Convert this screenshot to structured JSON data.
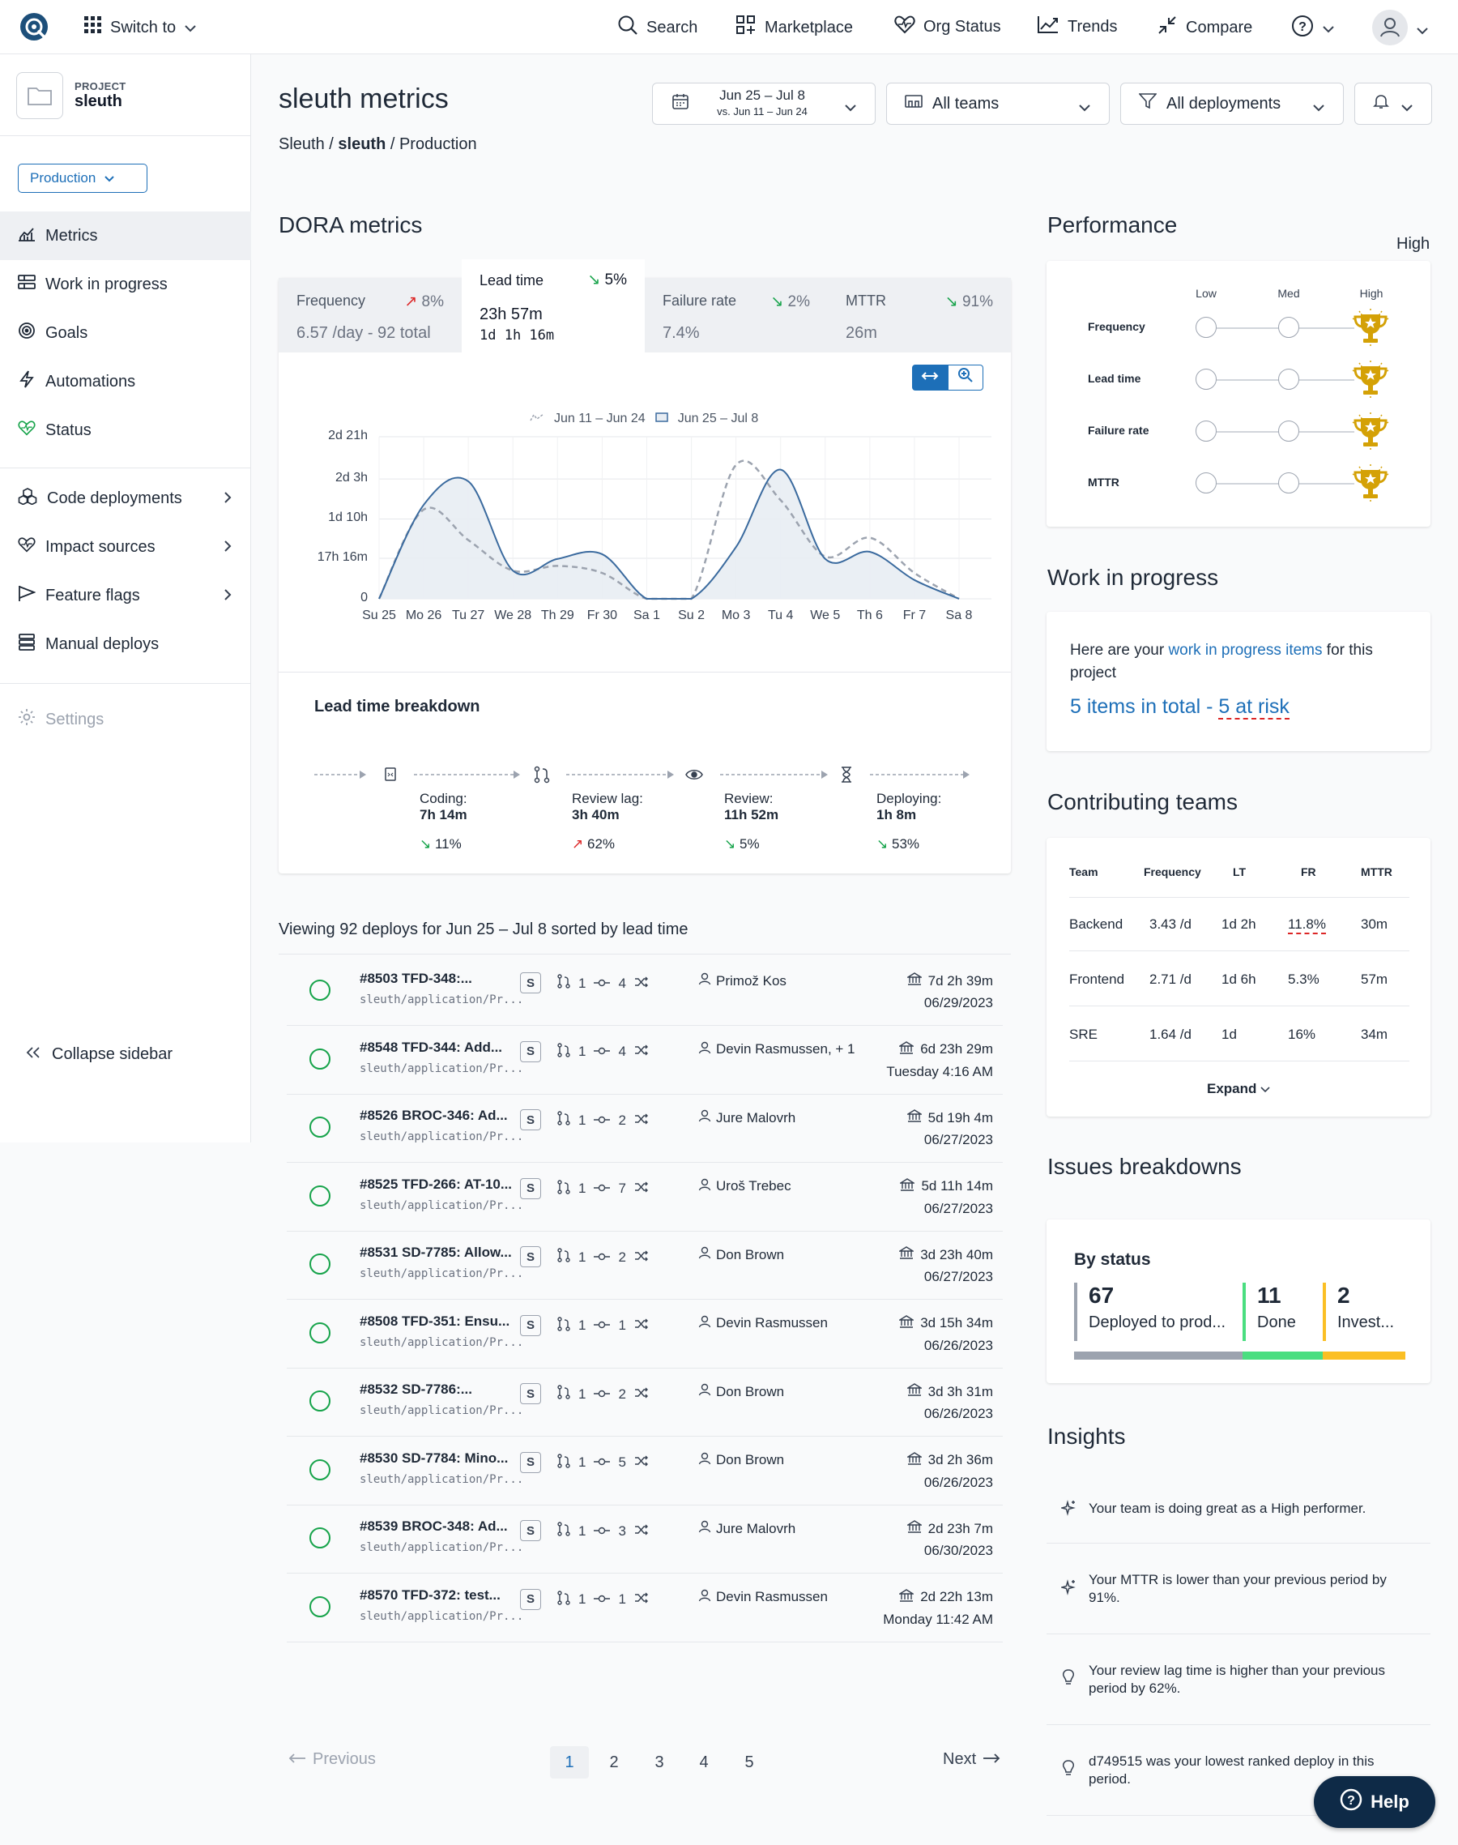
{
  "topbar": {
    "switch_label": "Switch to",
    "nav": [
      {
        "label": "Search",
        "icon": "search-icon"
      },
      {
        "label": "Marketplace",
        "icon": "grid-plus-icon"
      },
      {
        "label": "Org Status",
        "icon": "heart-pulse-icon"
      },
      {
        "label": "Trends",
        "icon": "trend-icon"
      },
      {
        "label": "Compare",
        "icon": "compare-icon"
      }
    ]
  },
  "sidebar": {
    "project_label": "PROJECT",
    "project_name": "sleuth",
    "environment": "Production",
    "items": [
      {
        "label": "Metrics",
        "icon": "chart-icon",
        "active": true
      },
      {
        "label": "Work in progress",
        "icon": "list-icon"
      },
      {
        "label": "Goals",
        "icon": "target-icon"
      },
      {
        "label": "Automations",
        "icon": "bolt-icon"
      },
      {
        "label": "Status",
        "icon": "heart-pulse-icon"
      },
      {
        "label": "Code deployments",
        "icon": "cubes-icon"
      },
      {
        "label": "Impact sources",
        "icon": "heart-pulse-icon"
      },
      {
        "label": "Feature flags",
        "icon": "flag-icon"
      },
      {
        "label": "Manual deploys",
        "icon": "stack-icon"
      },
      {
        "label": "Settings",
        "icon": "gear-icon"
      }
    ],
    "collapse_label": "Collapse sidebar"
  },
  "header": {
    "title": "sleuth metrics",
    "breadcrumb": [
      "Sleuth",
      "sleuth",
      "Production"
    ],
    "date_range": "Jun 25 – Jul 8",
    "date_compare": "vs. Jun 11 – Jun 24",
    "teams": "All teams",
    "deployments": "All deployments"
  },
  "dora": {
    "heading": "DORA metrics",
    "tabs": [
      {
        "label": "Frequency",
        "pct": "8%",
        "dir": "up",
        "value": "6.57 /day - 92 total"
      },
      {
        "label": "Lead time",
        "pct": "5%",
        "dir": "down",
        "value": "23h 57m",
        "sub": "1d 1h 16m"
      },
      {
        "label": "Failure rate",
        "pct": "2%",
        "dir": "down",
        "value": "7.4%"
      },
      {
        "label": "MTTR",
        "pct": "91%",
        "dir": "down",
        "value": "26m"
      }
    ],
    "breakdown_title": "Lead time breakdown",
    "stages": [
      {
        "label": "Coding:",
        "value": "7h 14m",
        "pct": "11%",
        "dir": "down"
      },
      {
        "label": "Review lag:",
        "value": "3h 40m",
        "pct": "62%",
        "dir": "up"
      },
      {
        "label": "Review:",
        "value": "11h 52m",
        "pct": "5%",
        "dir": "down"
      },
      {
        "label": "Deploying:",
        "value": "1h 8m",
        "pct": "53%",
        "dir": "down"
      }
    ]
  },
  "chart_data": {
    "type": "area",
    "title": "",
    "legend": [
      "Jun 11 – Jun 24",
      "Jun 25 – Jul 8"
    ],
    "categories": [
      "Su 25",
      "Mo 26",
      "Tu 27",
      "We 28",
      "Th 29",
      "Fr 30",
      "Sa 1",
      "Su 2",
      "Mo 3",
      "Tu 4",
      "We 5",
      "Th 6",
      "Fr 7",
      "Sa 8"
    ],
    "y_ticks": [
      "0",
      "17h 16m",
      "1d 10h",
      "2d 3h",
      "2d 21h"
    ],
    "ylim_hours": [
      0,
      69
    ],
    "series": [
      {
        "name": "Jun 25 – Jul 8",
        "style": "solid",
        "values_hours": [
          0,
          40,
          50,
          12,
          17,
          19,
          0,
          0,
          22,
          55,
          17,
          20,
          8,
          0
        ]
      },
      {
        "name": "Jun 11 – Jun 24",
        "style": "dashed",
        "values_hours": [
          0,
          38,
          25,
          12,
          14,
          11,
          0,
          0,
          57,
          42,
          18,
          26,
          11,
          0
        ]
      }
    ],
    "colors": {
      "current": "#3a6a9e",
      "previous": "#9ca3af"
    }
  },
  "deploys": {
    "summary": "Viewing 92 deploys for Jun 25 – Jul 8 sorted by lead time",
    "rows": [
      {
        "title": "#8503 TFD-348:...",
        "repo": "sleuth/application/Pr...",
        "prs": "1",
        "commits": "4",
        "author": "Primož Kos",
        "lead": "7d 2h 39m",
        "date": "06/29/2023"
      },
      {
        "title": "#8548 TFD-344: Add...",
        "repo": "sleuth/application/Pr...",
        "prs": "1",
        "commits": "4",
        "author": "Devin Rasmussen, + 1",
        "lead": "6d 23h 29m",
        "date": "Tuesday 4:16 AM"
      },
      {
        "title": "#8526 BROC-346: Ad...",
        "repo": "sleuth/application/Pr...",
        "prs": "1",
        "commits": "2",
        "author": "Jure Malovrh",
        "lead": "5d 19h 4m",
        "date": "06/27/2023"
      },
      {
        "title": "#8525 TFD-266: AT-10...",
        "repo": "sleuth/application/Pr...",
        "prs": "1",
        "commits": "7",
        "author": "Uroš Trebec",
        "lead": "5d 11h 14m",
        "date": "06/27/2023"
      },
      {
        "title": "#8531 SD-7785: Allow...",
        "repo": "sleuth/application/Pr...",
        "prs": "1",
        "commits": "2",
        "author": "Don Brown",
        "lead": "3d 23h 40m",
        "date": "06/27/2023"
      },
      {
        "title": "#8508 TFD-351: Ensu...",
        "repo": "sleuth/application/Pr...",
        "prs": "1",
        "commits": "1",
        "author": "Devin Rasmussen",
        "lead": "3d 15h 34m",
        "date": "06/26/2023"
      },
      {
        "title": "#8532 SD-7786:...",
        "repo": "sleuth/application/Pr...",
        "prs": "1",
        "commits": "2",
        "author": "Don Brown",
        "lead": "3d 3h 31m",
        "date": "06/26/2023"
      },
      {
        "title": "#8530 SD-7784: Mino...",
        "repo": "sleuth/application/Pr...",
        "prs": "1",
        "commits": "5",
        "author": "Don Brown",
        "lead": "3d 2h 36m",
        "date": "06/26/2023"
      },
      {
        "title": "#8539 BROC-348: Ad...",
        "repo": "sleuth/application/Pr...",
        "prs": "1",
        "commits": "3",
        "author": "Jure Malovrh",
        "lead": "2d 23h 7m",
        "date": "06/30/2023"
      },
      {
        "title": "#8570 TFD-372: test...",
        "repo": "sleuth/application/Pr...",
        "prs": "1",
        "commits": "1",
        "author": "Devin Rasmussen",
        "lead": "2d 22h 13m",
        "date": "Monday 11:42 AM"
      }
    ],
    "badge": "S"
  },
  "pagination": {
    "prev": "Previous",
    "next": "Next",
    "pages": [
      "1",
      "2",
      "3",
      "4",
      "5"
    ],
    "current": "1"
  },
  "performance": {
    "heading": "Performance",
    "overall": "High",
    "columns": [
      "Low",
      "Med",
      "High"
    ],
    "rows": [
      "Frequency",
      "Lead time",
      "Failure rate",
      "MTTR"
    ],
    "trophy_color": "#d4a106"
  },
  "wip": {
    "heading": "Work in progress",
    "text_before": "Here are your ",
    "link": "work in progress items",
    "text_after": " for this project",
    "total": "5 items in total",
    "dash": " - ",
    "risk": "5 at risk"
  },
  "teams": {
    "heading": "Contributing teams",
    "columns": [
      "Team",
      "Frequency",
      "LT",
      "FR",
      "MTTR"
    ],
    "rows": [
      {
        "team": "Backend",
        "freq": "3.43 /d",
        "lt": "1d 2h",
        "fr": "11.8%",
        "mttr": "30m"
      },
      {
        "team": "Frontend",
        "freq": "2.71 /d",
        "lt": "1d 6h",
        "fr": "5.3%",
        "mttr": "57m"
      },
      {
        "team": "SRE",
        "freq": "1.64 /d",
        "lt": "1d",
        "fr": "16%",
        "mttr": "34m"
      }
    ],
    "expand": "Expand"
  },
  "issues": {
    "heading": "Issues breakdowns",
    "by_status": "By status",
    "statuses": [
      {
        "count": "67",
        "label": "Deployed to prod...",
        "color": "#9ca3af"
      },
      {
        "count": "11",
        "label": "Done",
        "color": "#4ade80"
      },
      {
        "count": "2",
        "label": "Invest...",
        "color": "#fbbf24"
      }
    ]
  },
  "insights": {
    "heading": "Insights",
    "items": [
      {
        "text": "Your team is doing great as a High performer.",
        "icon": "sparkle-icon"
      },
      {
        "text": "Your MTTR is lower than your previous period by 91%.",
        "icon": "sparkle-icon"
      },
      {
        "text": "Your review lag time is higher than your previous period by 62%.",
        "icon": "lightbulb-icon"
      },
      {
        "text": "d749515 was your lowest ranked deploy in this period.",
        "icon": "lightbulb-icon"
      }
    ]
  },
  "help_label": "Help"
}
